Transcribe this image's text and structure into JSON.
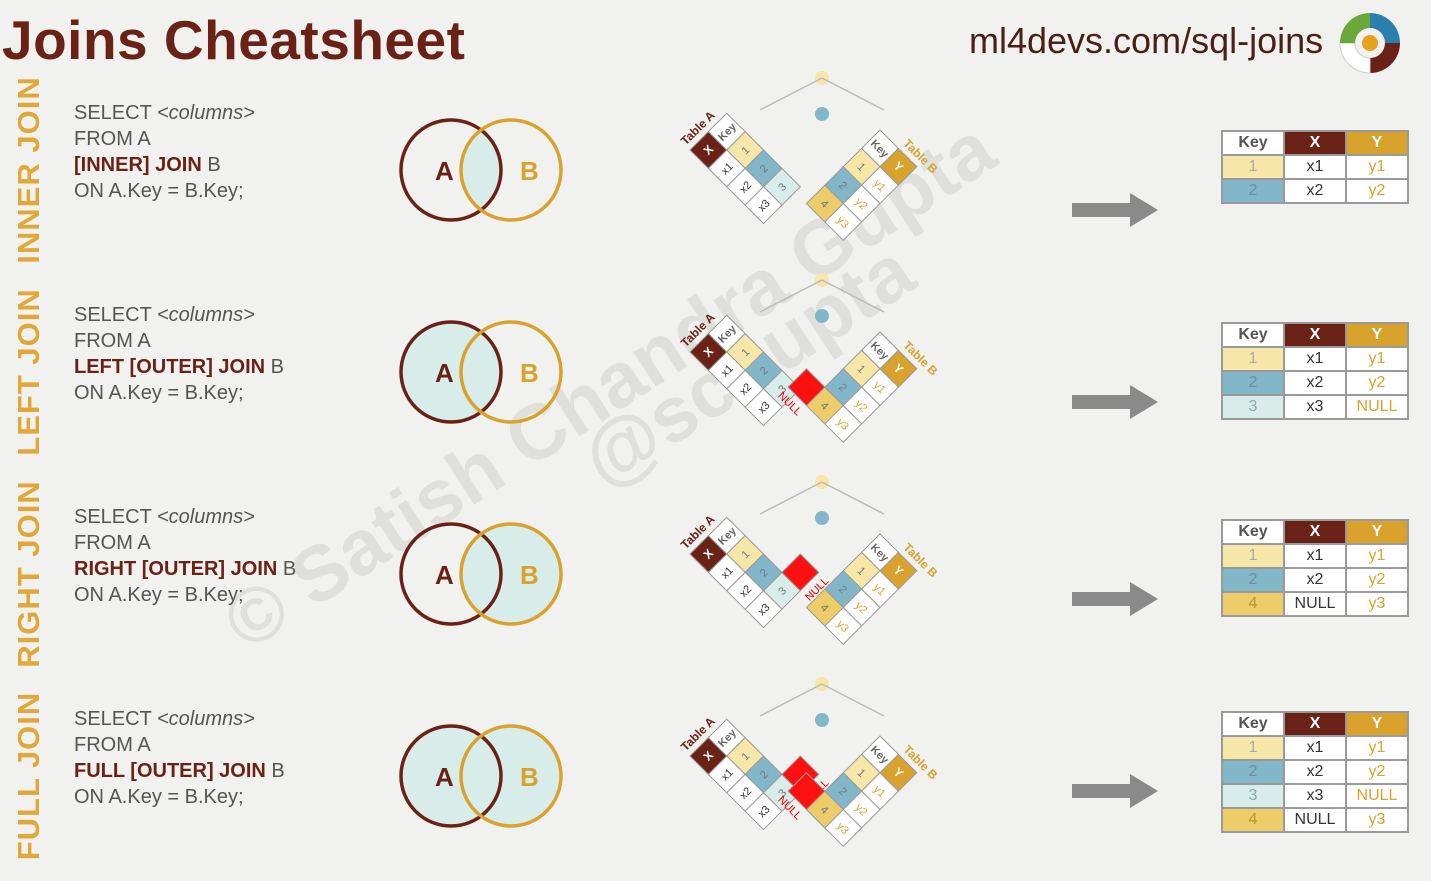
{
  "header": {
    "title": "Joins Cheatsheet",
    "url": "ml4devs.com/sql-joins"
  },
  "watermark": {
    "line1": "© Satish Chandra Gupta",
    "line2": "@scgupta"
  },
  "venn": {
    "a": "A",
    "b": "B"
  },
  "colors": {
    "maroon": "#6b2216",
    "gold": "#d9a22d",
    "key1": "#f6e6a8",
    "key2": "#82b7c9",
    "key3": "#d8ecea",
    "key4": "#eccd6a",
    "null": "#ff1010",
    "venn_fill": "#d8ecea"
  },
  "diagram_labels": {
    "table_a": "Table A",
    "table_b": "Table B",
    "key": "Key",
    "x": "X",
    "y": "Y",
    "null": "NULL"
  },
  "table_a": {
    "keys": [
      "1",
      "2",
      "3"
    ],
    "values": [
      "x1",
      "x2",
      "x3"
    ]
  },
  "table_b": {
    "keys": [
      "1",
      "2",
      "4"
    ],
    "values": [
      "y1",
      "y2",
      "y3"
    ]
  },
  "joins": [
    {
      "name": "INNER JOIN",
      "sql": {
        "l1": "SELECT ",
        "l1c": "<columns>",
        "l2": "FROM A",
        "l3kw": "[INNER] JOIN",
        "l3": " B",
        "l4": "ON A.Key = B.Key;"
      },
      "venn_fill": "intersection",
      "result": {
        "headers": [
          "Key",
          "X",
          "Y"
        ],
        "rows": [
          [
            "1",
            "x1",
            "y1"
          ],
          [
            "2",
            "x2",
            "y2"
          ]
        ]
      }
    },
    {
      "name": "LEFT JOIN",
      "sql": {
        "l1": "SELECT ",
        "l1c": "<columns>",
        "l2": "FROM A",
        "l3kw": "LEFT [OUTER] JOIN",
        "l3": " B",
        "l4": "ON A.Key = B.Key;"
      },
      "venn_fill": "left",
      "result": {
        "headers": [
          "Key",
          "X",
          "Y"
        ],
        "rows": [
          [
            "1",
            "x1",
            "y1"
          ],
          [
            "2",
            "x2",
            "y2"
          ],
          [
            "3",
            "x3",
            "NULL"
          ]
        ]
      }
    },
    {
      "name": "RIGHT JOIN",
      "sql": {
        "l1": "SELECT ",
        "l1c": "<columns>",
        "l2": "FROM A",
        "l3kw": "RIGHT [OUTER] JOIN",
        "l3": " B",
        "l4": "ON A.Key = B.Key;"
      },
      "venn_fill": "right",
      "result": {
        "headers": [
          "Key",
          "X",
          "Y"
        ],
        "rows": [
          [
            "1",
            "x1",
            "y1"
          ],
          [
            "2",
            "x2",
            "y2"
          ],
          [
            "4",
            "NULL",
            "y3"
          ]
        ]
      }
    },
    {
      "name": "FULL JOIN",
      "sql": {
        "l1": "SELECT ",
        "l1c": "<columns>",
        "l2": "FROM A",
        "l3kw": "FULL [OUTER] JOIN",
        "l3": " B",
        "l4": "ON A.Key = B.Key;"
      },
      "venn_fill": "full",
      "result": {
        "headers": [
          "Key",
          "X",
          "Y"
        ],
        "rows": [
          [
            "1",
            "x1",
            "y1"
          ],
          [
            "2",
            "x2",
            "y2"
          ],
          [
            "3",
            "x3",
            "NULL"
          ],
          [
            "4",
            "NULL",
            "y3"
          ]
        ]
      }
    }
  ]
}
